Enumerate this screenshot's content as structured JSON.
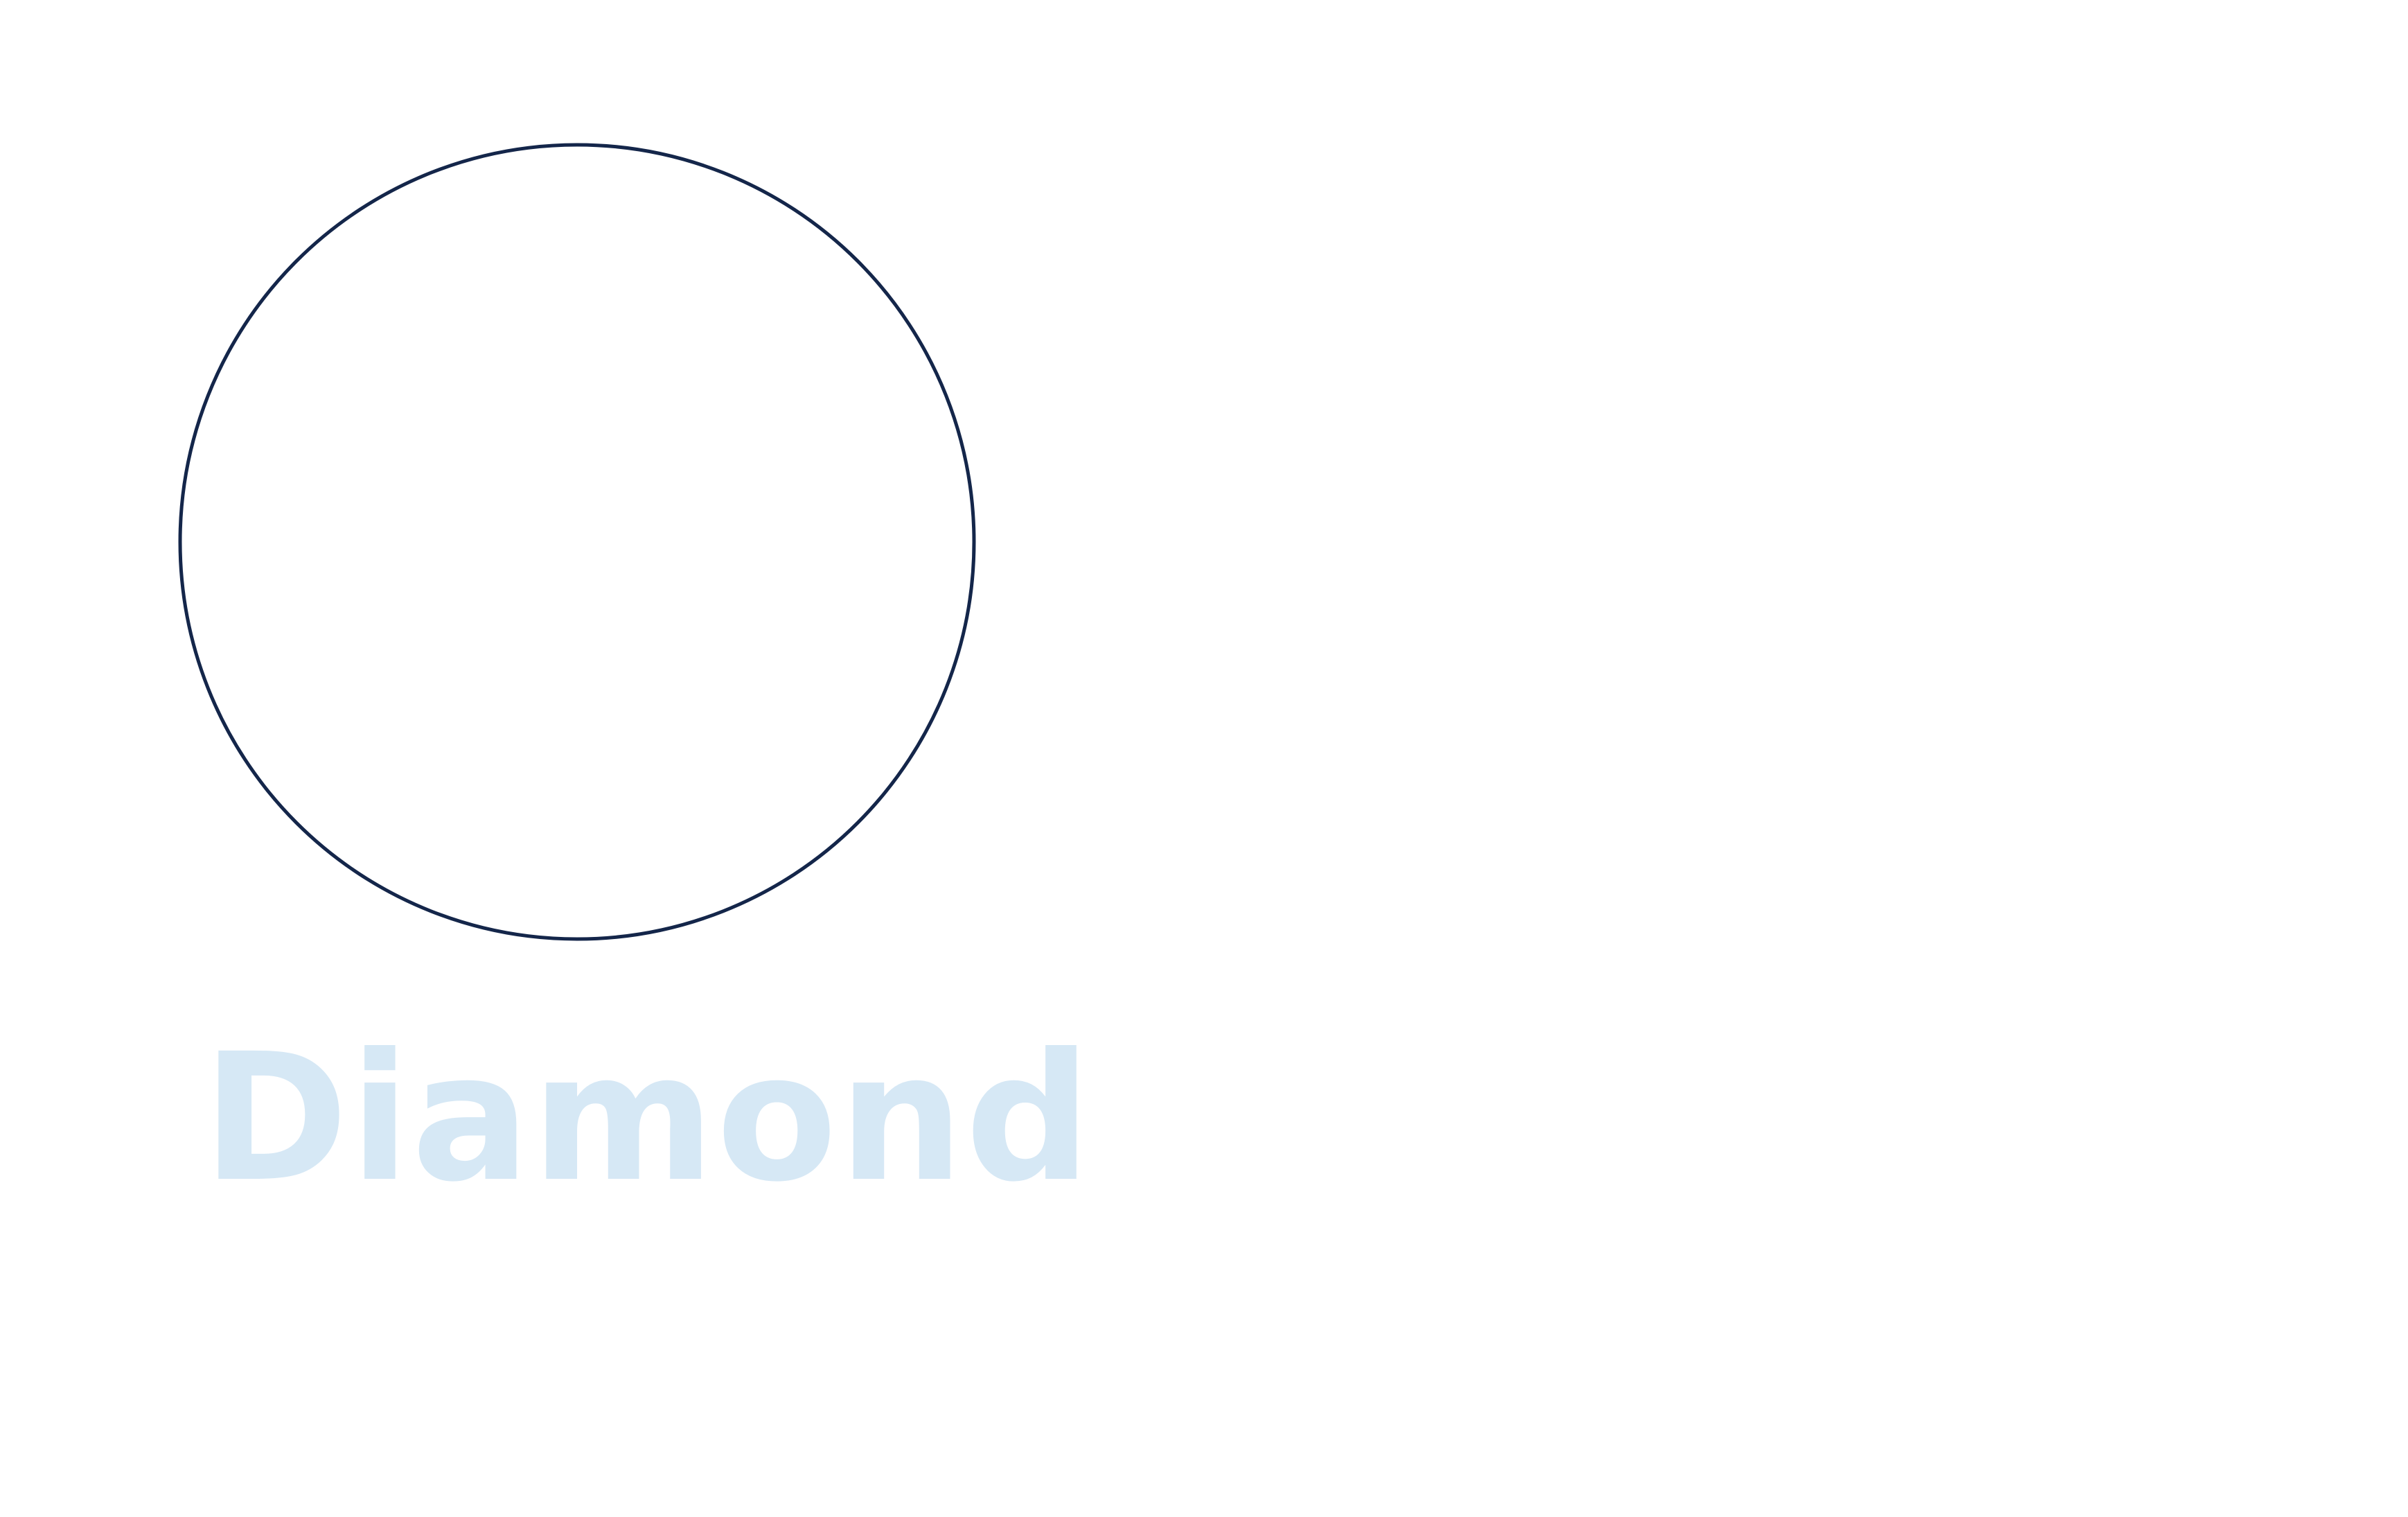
{
  "label": {
    "text": "Diamond",
    "color": "#d6e8f5"
  },
  "shape": {
    "name": "circle-outline",
    "stroke_color": "#14264a",
    "fill_color": "#ffffff"
  }
}
